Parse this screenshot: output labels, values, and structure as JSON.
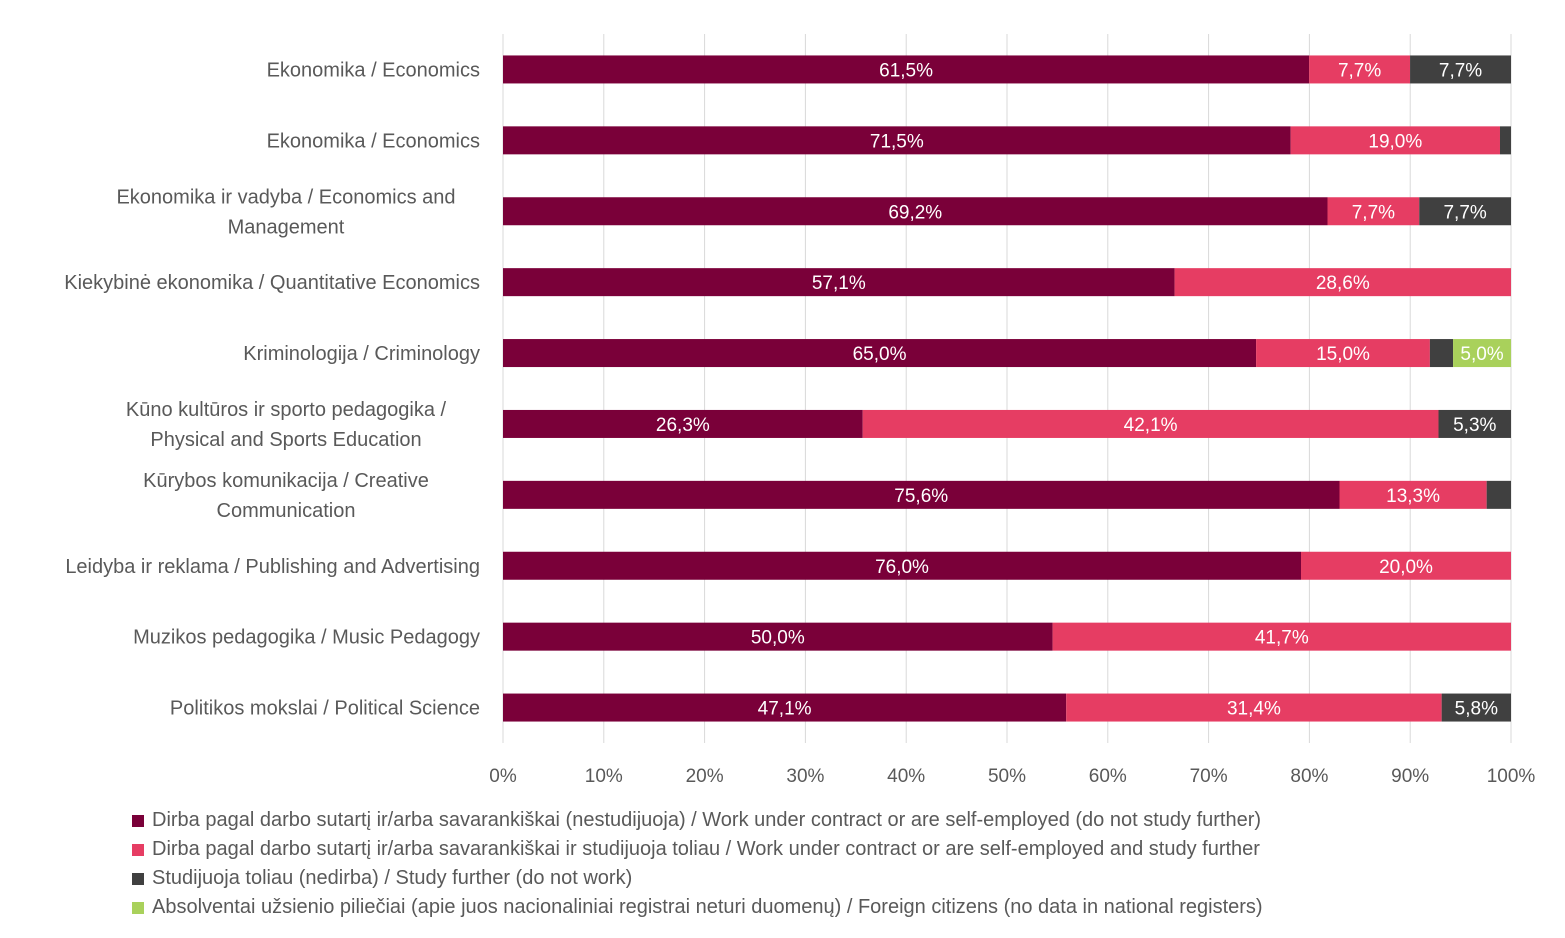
{
  "chart_data": {
    "type": "bar",
    "orientation": "horizontal",
    "stacked": true,
    "categories": [
      "Ekonomika / Economics",
      "Ekonomika / Economics",
      "Ekonomika ir vadyba / Economics and Management",
      "Kiekybinė ekonomika / Quantitative Economics",
      "Kriminologija / Criminology",
      "Kūno kultūros ir sporto pedagogika / Physical and Sports Education",
      "Kūrybos komunikacija / Creative Communication",
      "Leidyba ir reklama / Publishing and Advertising",
      "Muzikos pedagogika / Music Pedagogy",
      "Politikos mokslai / Political Science"
    ],
    "category_lines": [
      [
        "Ekonomika / Economics"
      ],
      [
        "Ekonomika / Economics"
      ],
      [
        "Ekonomika ir vadyba / Economics and",
        "Management"
      ],
      [
        "Kiekybinė ekonomika / Quantitative Economics"
      ],
      [
        "Kriminologija / Criminology"
      ],
      [
        "Kūno kultūros ir sporto pedagogika /",
        "Physical and Sports Education"
      ],
      [
        "Kūrybos komunikacija / Creative",
        "Communication"
      ],
      [
        "Leidyba ir reklama / Publishing and Advertising"
      ],
      [
        "Muzikos pedagogika / Music Pedagogy"
      ],
      [
        "Politikos mokslai / Political Science"
      ]
    ],
    "series": [
      {
        "name": "Dirba pagal darbo sutartį ir/arba savarankiškai (nestudijuoja) / Work under contract or are self-employed (do not study further)",
        "color": "#7a0039",
        "values": [
          61.5,
          71.5,
          69.2,
          57.1,
          65.0,
          26.3,
          75.6,
          76.0,
          50.0,
          47.1
        ],
        "labels": [
          "61,5%",
          "71,5%",
          "69,2%",
          "57,1%",
          "65,0%",
          "26,3%",
          "75,6%",
          "76,0%",
          "50,0%",
          "47,1%"
        ]
      },
      {
        "name": "Dirba pagal darbo sutartį ir/arba savarankiškai  ir studijuoja toliau / Work under contract or are self-employed and study further",
        "color": "#e63d63",
        "values": [
          7.7,
          19.0,
          7.7,
          28.6,
          15.0,
          42.1,
          13.3,
          20.0,
          41.7,
          31.4
        ],
        "labels": [
          "7,7%",
          "19,0%",
          "7,7%",
          "28,6%",
          "15,0%",
          "42,1%",
          "13,3%",
          "20,0%",
          "41,7%",
          "31,4%"
        ]
      },
      {
        "name": "Studijuoja toliau (nedirba) / Study further (do not work)",
        "color": "#404040",
        "values": [
          7.7,
          1.0,
          7.7,
          0,
          2.0,
          5.3,
          2.2,
          0,
          0,
          5.8
        ],
        "labels": [
          "7,7%",
          "",
          "7,7%",
          "",
          "",
          "5,3%",
          "",
          "",
          "",
          "5,8%"
        ]
      },
      {
        "name": "Absolventai užsienio piliečiai (apie juos nacionaliniai registrai neturi duomenų) / Foreign citizens (no data in national registers)",
        "color": "#a9d15b",
        "values": [
          0,
          0,
          0,
          0,
          5.0,
          0,
          0,
          0,
          0,
          0
        ],
        "labels": [
          "",
          "",
          "",
          "",
          "5,0%",
          "",
          "",
          "",
          "",
          ""
        ]
      }
    ],
    "x_ticks": [
      "0%",
      "10%",
      "20%",
      "30%",
      "40%",
      "50%",
      "60%",
      "70%",
      "80%",
      "90%",
      "100%"
    ],
    "xlim": [
      0,
      100
    ],
    "normalized_to_100": true,
    "grid": "vertical",
    "legend_position": "bottom"
  }
}
